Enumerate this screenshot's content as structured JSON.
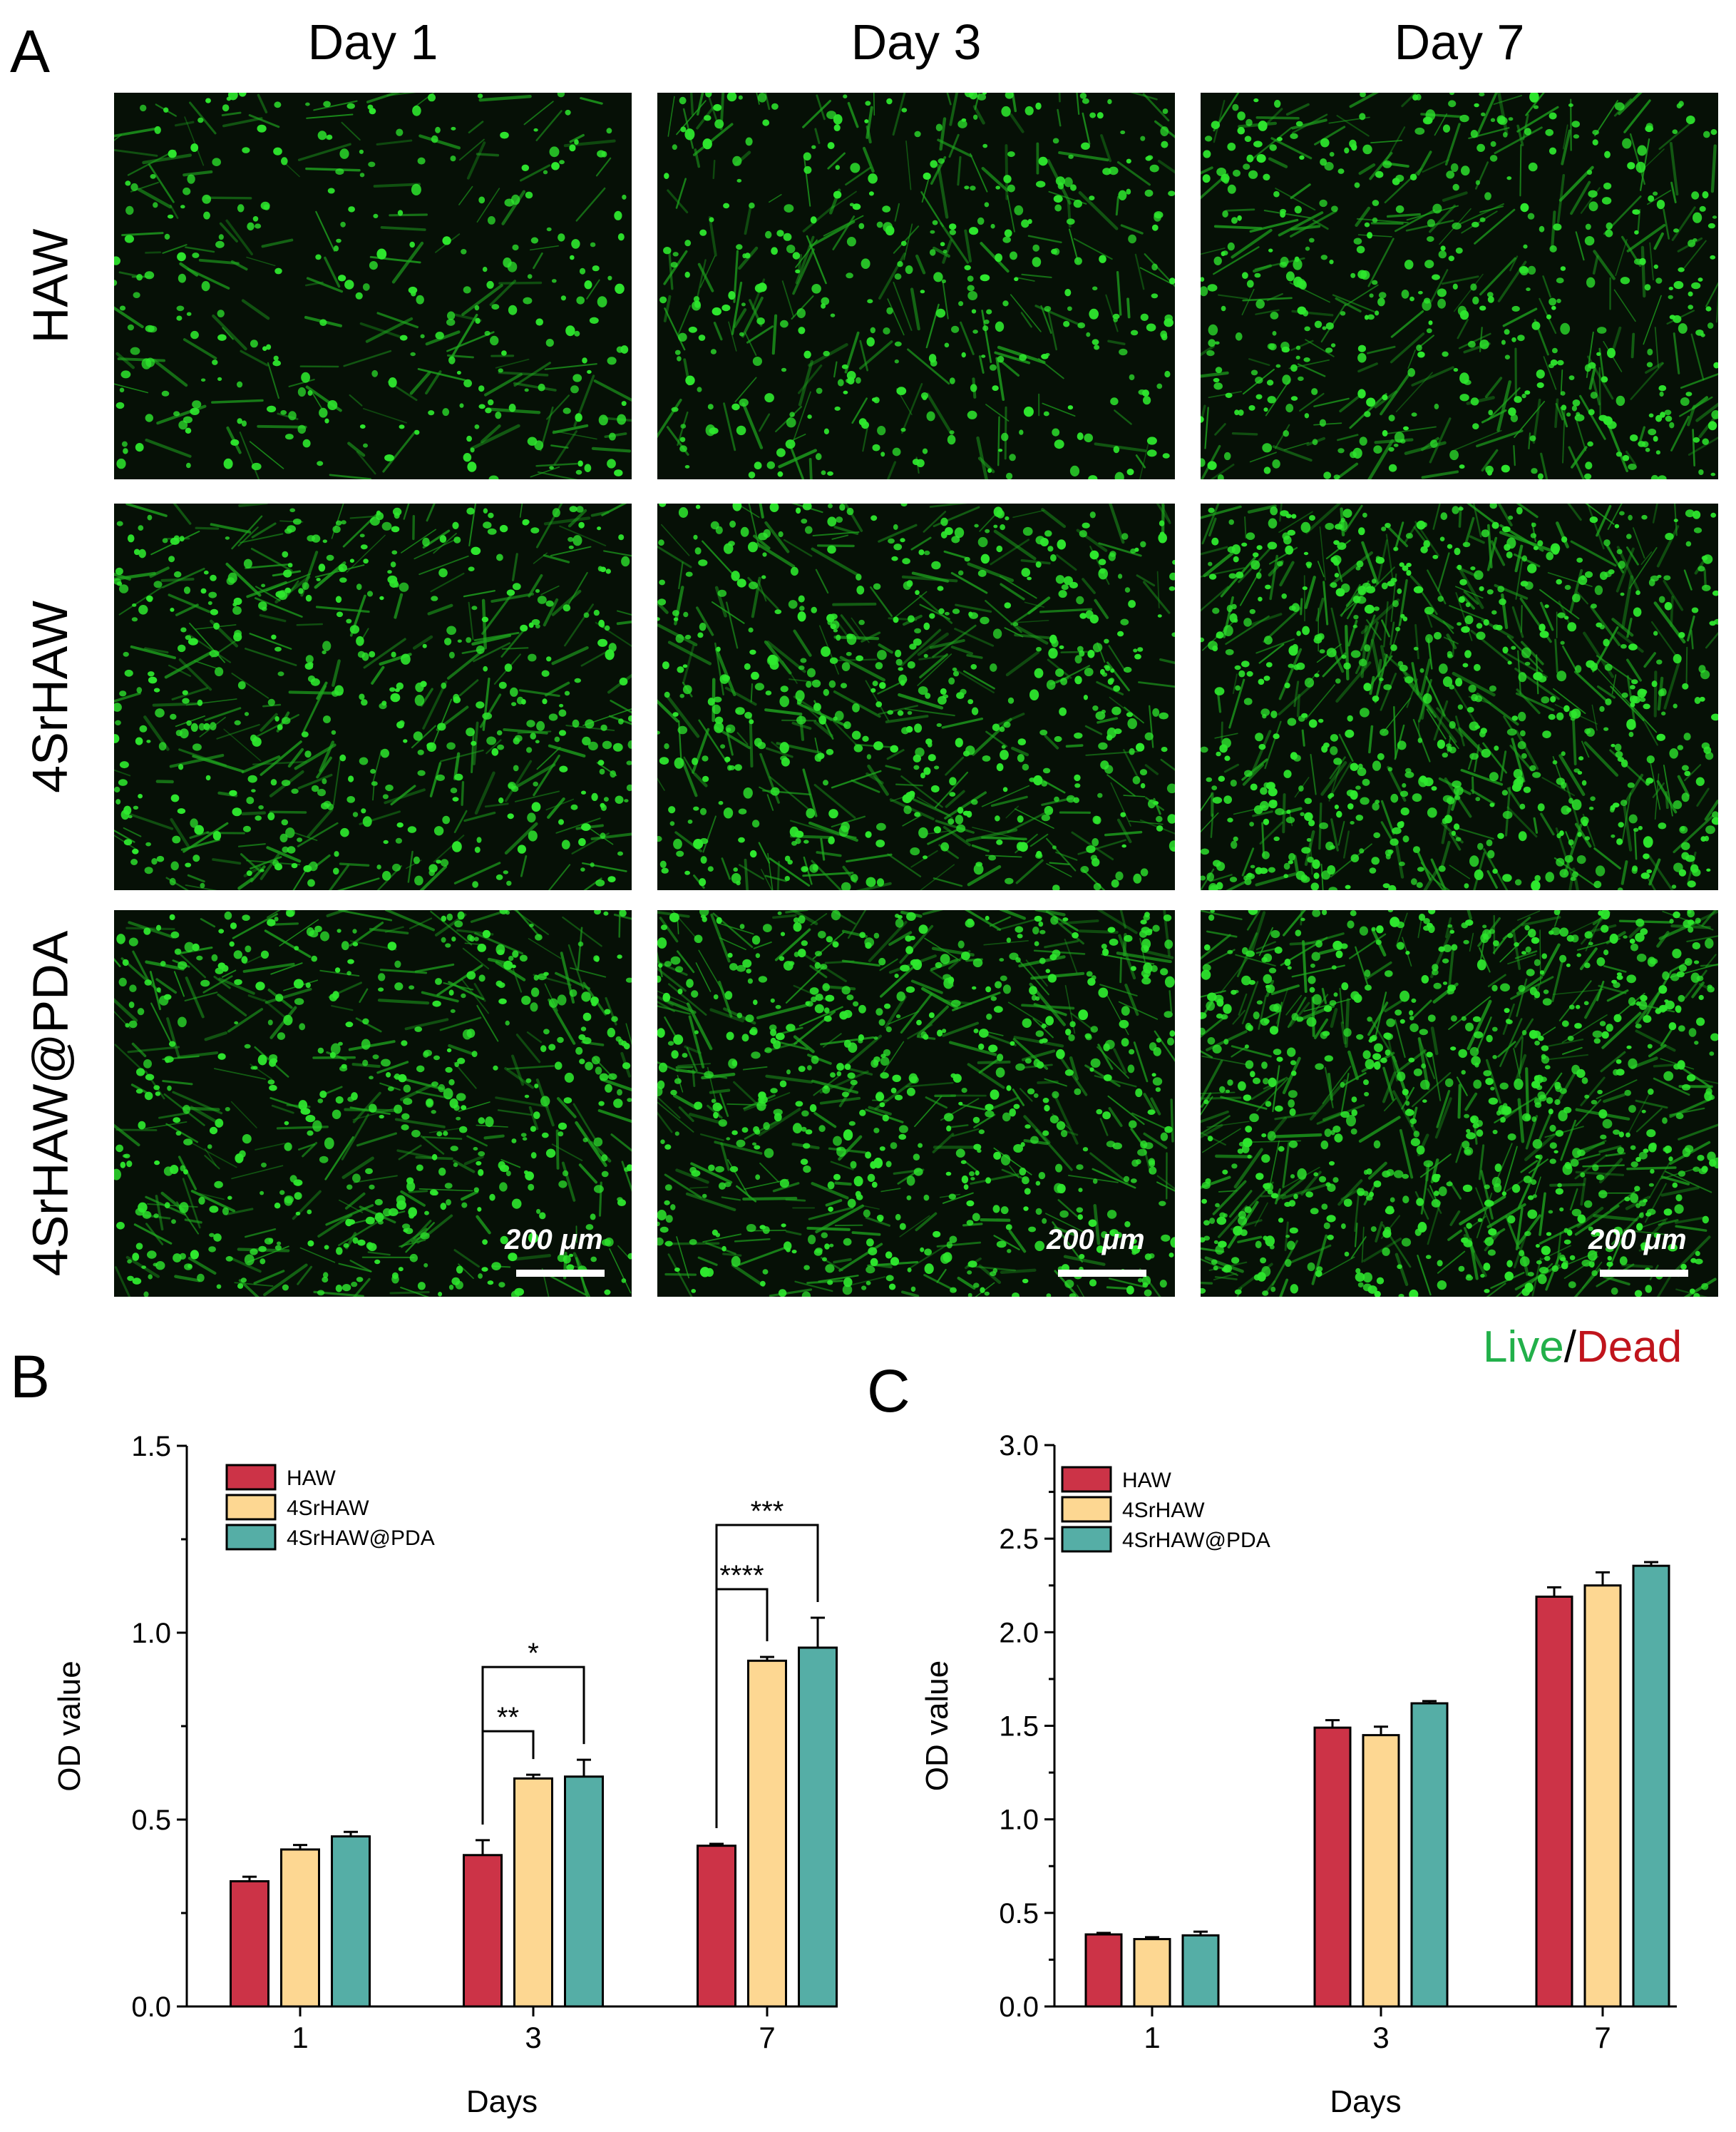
{
  "panels": {
    "a_label": "A",
    "b_label": "B",
    "c_label": "C"
  },
  "panel_a": {
    "columns": [
      "Day 1",
      "Day 3",
      "Day 7"
    ],
    "rows": [
      "HAW",
      "4SrHAW",
      "4SrHAW@PDA"
    ],
    "scale_bar_label": "200 μm",
    "legend_live": "Live",
    "legend_slash": "/",
    "legend_dead": "Dead",
    "colors": {
      "live": "#22cc44",
      "dead": "#cc1111",
      "cell": "#2ee82e"
    }
  },
  "chart_data": [
    {
      "type": "bar",
      "panel": "B",
      "categories": [
        "1",
        "3",
        "7"
      ],
      "xlabel": "Days",
      "ylabel": "OD value",
      "ylim": [
        0,
        1.5
      ],
      "yticks": [
        "0.0",
        "0.5",
        "1.0",
        "1.5"
      ],
      "legend_position": "top-left",
      "series": [
        {
          "name": "HAW",
          "color": "#cc3347",
          "values": [
            0.335,
            0.405,
            0.43
          ],
          "errors": [
            0.012,
            0.04,
            0.005
          ]
        },
        {
          "name": "4SrHAW",
          "color": "#fdd792",
          "values": [
            0.42,
            0.61,
            0.925
          ],
          "errors": [
            0.012,
            0.01,
            0.01
          ]
        },
        {
          "name": "4SrHAW@PDA",
          "color": "#55aea6",
          "values": [
            0.455,
            0.615,
            0.96
          ],
          "errors": [
            0.012,
            0.045,
            0.08
          ]
        }
      ],
      "significance": [
        {
          "label": "**",
          "category": 1,
          "from": 0,
          "to": 1
        },
        {
          "label": "*",
          "category": 1,
          "from": 0,
          "to": 2
        },
        {
          "label": "****",
          "category": 2,
          "from": 0,
          "to": 1
        },
        {
          "label": "***",
          "category": 2,
          "from": 0,
          "to": 2
        }
      ]
    },
    {
      "type": "bar",
      "panel": "C",
      "categories": [
        "1",
        "3",
        "7"
      ],
      "xlabel": "Days",
      "ylabel": "OD value",
      "ylim": [
        0,
        3.0
      ],
      "yticks": [
        "0.0",
        "0.5",
        "1.0",
        "1.5",
        "2.0",
        "2.5",
        "3.0"
      ],
      "legend_position": "top-left",
      "series": [
        {
          "name": "HAW",
          "color": "#cc3347",
          "values": [
            0.385,
            1.49,
            2.19
          ],
          "errors": [
            0.008,
            0.04,
            0.05
          ]
        },
        {
          "name": "4SrHAW",
          "color": "#fdd792",
          "values": [
            0.36,
            1.45,
            2.25
          ],
          "errors": [
            0.01,
            0.045,
            0.07
          ]
        },
        {
          "name": "4SrHAW@PDA",
          "color": "#55aea6",
          "values": [
            0.38,
            1.62,
            2.355
          ],
          "errors": [
            0.02,
            0.012,
            0.02
          ]
        }
      ]
    }
  ]
}
